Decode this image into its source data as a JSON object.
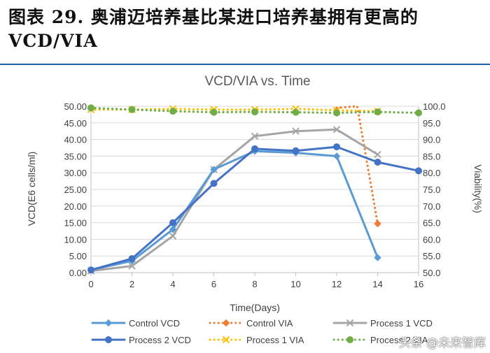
{
  "figure": {
    "title_line1": "图表 29. 奥浦迈培养基比某进口培养基拥有更高的",
    "title_line2": "VCD/VIA"
  },
  "watermark": "头条 @未来智库",
  "chart_data": {
    "type": "line",
    "title": "VCD/VIA vs. Time",
    "xlabel": "Time(Days)",
    "ylabel": "VCD(E6 cells/ml)",
    "y2label": "Viability(%)",
    "xlim": [
      0,
      16
    ],
    "ylim": [
      0,
      50
    ],
    "y2lim": [
      50,
      100
    ],
    "xticks": [
      0,
      2,
      4,
      6,
      8,
      10,
      12,
      14,
      16
    ],
    "yticks": [
      "0.00",
      "5.00",
      "10.00",
      "15.00",
      "20.00",
      "25.00",
      "30.00",
      "35.00",
      "40.00",
      "45.00",
      "50.00"
    ],
    "y2ticks": [
      "50.0",
      "55.0",
      "60.0",
      "65.0",
      "70.0",
      "75.0",
      "80.0",
      "85.0",
      "90.0",
      "95.0",
      "100.0"
    ],
    "series": [
      {
        "name": "Control VCD",
        "axis": "left",
        "color": "#5b9bd5",
        "style": "solid",
        "marker": "diamond",
        "x": [
          0,
          2,
          4,
          6,
          8,
          10,
          12,
          14
        ],
        "values": [
          0.8,
          3.5,
          13.0,
          31.0,
          36.5,
          36.0,
          35.0,
          4.5
        ]
      },
      {
        "name": "Control VIA",
        "axis": "right",
        "color": "#ed7d31",
        "style": "dotted",
        "marker": "diamond",
        "x": [
          12,
          13,
          14
        ],
        "values": [
          99.5,
          100.0,
          64.7
        ]
      },
      {
        "name": "Process 1 VCD",
        "axis": "left",
        "color": "#a5a5a5",
        "style": "solid",
        "marker": "x",
        "x": [
          0,
          2,
          4,
          6,
          8,
          10,
          12,
          14
        ],
        "values": [
          0.5,
          2.0,
          11.0,
          31.0,
          41.0,
          42.5,
          43.0,
          35.5
        ]
      },
      {
        "name": "Process 2 VCD",
        "axis": "left",
        "color": "#4472c4",
        "style": "solid",
        "marker": "circle",
        "x": [
          0,
          2,
          4,
          6,
          8,
          10,
          12,
          14,
          16
        ],
        "values": [
          0.8,
          4.2,
          15.0,
          26.8,
          37.2,
          36.6,
          37.8,
          33.2,
          30.6
        ]
      },
      {
        "name": "Process 1 VIA",
        "axis": "right",
        "color": "#ffc000",
        "style": "dotted",
        "marker": "x",
        "x": [
          0,
          2,
          4,
          6,
          8,
          10,
          12,
          14
        ],
        "values": [
          99.0,
          99.0,
          99.2,
          99.0,
          99.0,
          99.2,
          98.8,
          98.5
        ]
      },
      {
        "name": "Process 2 VIA",
        "axis": "right",
        "color": "#70ad47",
        "style": "dotted",
        "marker": "circle",
        "x": [
          0,
          2,
          4,
          6,
          8,
          10,
          12,
          14,
          16
        ],
        "values": [
          99.5,
          99.0,
          98.5,
          98.2,
          98.3,
          98.2,
          98.0,
          98.3,
          98.0
        ]
      }
    ],
    "legend": [
      {
        "label": "Control VCD",
        "series": 0
      },
      {
        "label": "Control VIA",
        "series": 1
      },
      {
        "label": "Process 1 VCD",
        "series": 2
      },
      {
        "label": "Process 2 VCD",
        "series": 3
      },
      {
        "label": "Process 1 VIA",
        "series": 4
      },
      {
        "label": "Process 2 VIA",
        "series": 5
      }
    ]
  }
}
